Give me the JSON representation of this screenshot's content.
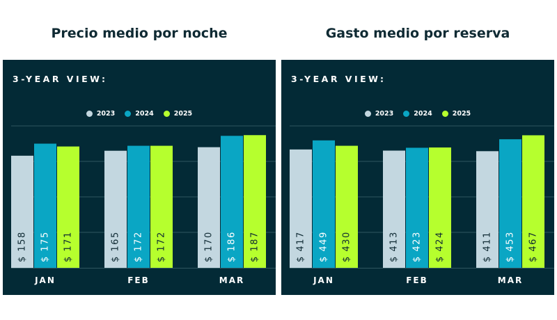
{
  "colors": {
    "background": "#032a36",
    "gridline": "#2f5560",
    "text": "#ffffff",
    "series": [
      "#c3d7e0",
      "#0aa6c4",
      "#b6ff2e"
    ],
    "value_label_dark": "#0f2a33"
  },
  "charts": [
    {
      "heading": "Precio medio por noche",
      "view_label": "3-YEAR VIEW:"
    },
    {
      "heading": "Gasto medio por reserva",
      "view_label": "3-YEAR VIEW:"
    }
  ],
  "chart_data": [
    {
      "type": "bar",
      "title": "Precio medio por noche",
      "subtitle": "3-YEAR VIEW:",
      "categories": [
        "JAN",
        "FEB",
        "MAR"
      ],
      "series": [
        {
          "name": "2023",
          "values": [
            158,
            165,
            170
          ]
        },
        {
          "name": "2024",
          "values": [
            175,
            172,
            186
          ]
        },
        {
          "name": "2025",
          "values": [
            171,
            172,
            187
          ]
        }
      ],
      "value_prefix": "$ ",
      "ylim": [
        0,
        200
      ],
      "legend": "top-center",
      "grid": true
    },
    {
      "type": "bar",
      "title": "Gasto medio por reserva",
      "subtitle": "3-YEAR VIEW:",
      "categories": [
        "JAN",
        "FEB",
        "MAR"
      ],
      "series": [
        {
          "name": "2023",
          "values": [
            417,
            413,
            411
          ]
        },
        {
          "name": "2024",
          "values": [
            449,
            423,
            453
          ]
        },
        {
          "name": "2025",
          "values": [
            430,
            424,
            467
          ]
        }
      ],
      "value_prefix": "$ ",
      "ylim": [
        0,
        500
      ],
      "legend": "top-center",
      "grid": true
    }
  ]
}
